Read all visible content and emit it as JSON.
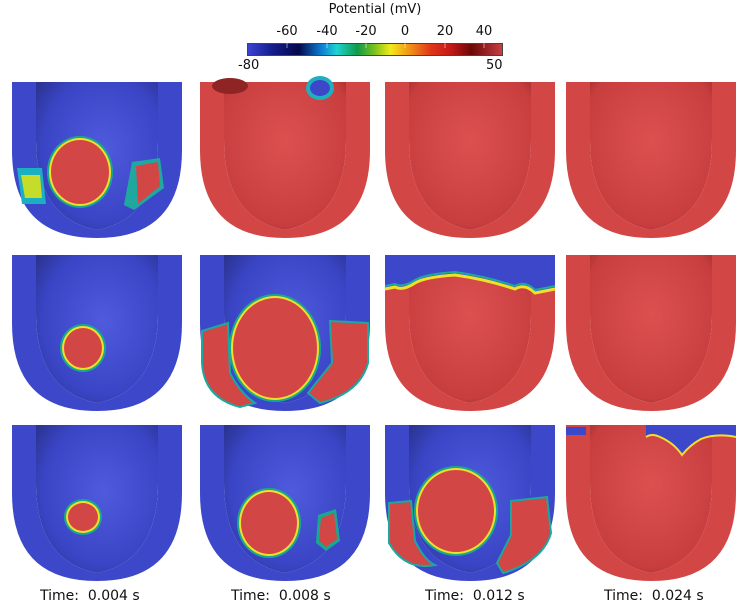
{
  "colorbar": {
    "title": "Potential (mV)",
    "min_label": "-80",
    "max_label": "50",
    "ticks": [
      "-60",
      "-40",
      "-20",
      "0",
      "20",
      "40"
    ]
  },
  "time_labels": [
    "Time:  0.004 s",
    "Time:  0.008 s",
    "Time:  0.012 s",
    "Time:  0.024 s"
  ],
  "colors": {
    "resting_blue": "#3c47c9",
    "depolarized_red": "#d24646",
    "wall_shadow": "#2a338f"
  },
  "panels": [
    {
      "row": 1,
      "col": 1,
      "state": "red-patch-center-plus-side-patches"
    },
    {
      "row": 1,
      "col": 2,
      "state": "almost-fully-red"
    },
    {
      "row": 1,
      "col": 3,
      "state": "fully-red"
    },
    {
      "row": 1,
      "col": 4,
      "state": "fully-red"
    },
    {
      "row": 2,
      "col": 1,
      "state": "small-red-patch"
    },
    {
      "row": 2,
      "col": 2,
      "state": "large-red-patch"
    },
    {
      "row": 2,
      "col": 3,
      "state": "mostly-red"
    },
    {
      "row": 2,
      "col": 4,
      "state": "fully-red"
    },
    {
      "row": 3,
      "col": 1,
      "state": "small-red-patch"
    },
    {
      "row": 3,
      "col": 2,
      "state": "medium-red-patch"
    },
    {
      "row": 3,
      "col": 3,
      "state": "large-red-patch"
    },
    {
      "row": 3,
      "col": 4,
      "state": "nearly-fully-red"
    }
  ]
}
